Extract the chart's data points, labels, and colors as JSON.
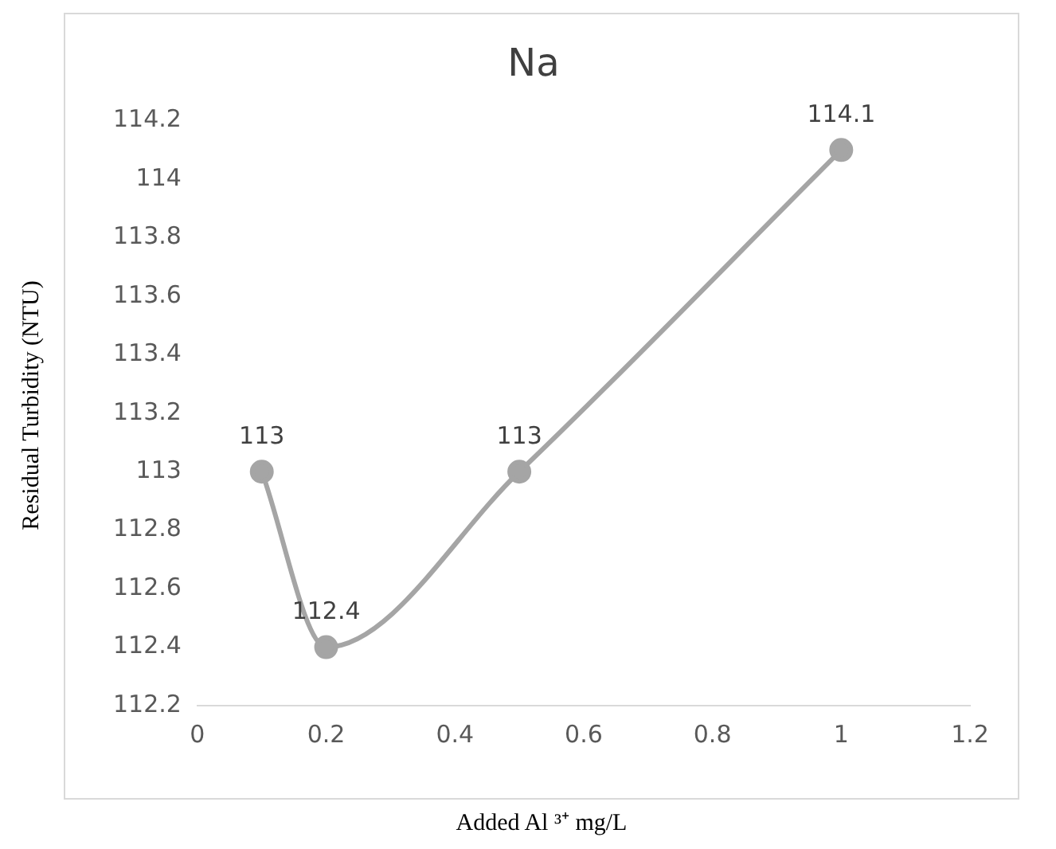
{
  "chart_data": {
    "type": "line",
    "title": "Na",
    "xlabel": "Added Al ³⁺ mg/L",
    "ylabel": "Residual Turbidity (NTU)",
    "x": [
      0.1,
      0.2,
      0.5,
      1
    ],
    "series": [
      {
        "color": "#a5a5a5",
        "values": [
          113,
          112.4,
          113,
          114.1
        ]
      }
    ],
    "xlim": [
      0,
      1.2
    ],
    "xticks": [
      0,
      0.2,
      0.4,
      0.6,
      0.8,
      1,
      1.2
    ],
    "ylim": [
      112.2,
      114.2
    ],
    "yticks": [
      112.2,
      112.4,
      112.6,
      112.8,
      113,
      113.2,
      113.4,
      113.6,
      113.8,
      114,
      114.2
    ],
    "grid": false,
    "legend": false,
    "marker": "circle",
    "line_style": "solid",
    "data_labels": true
  }
}
